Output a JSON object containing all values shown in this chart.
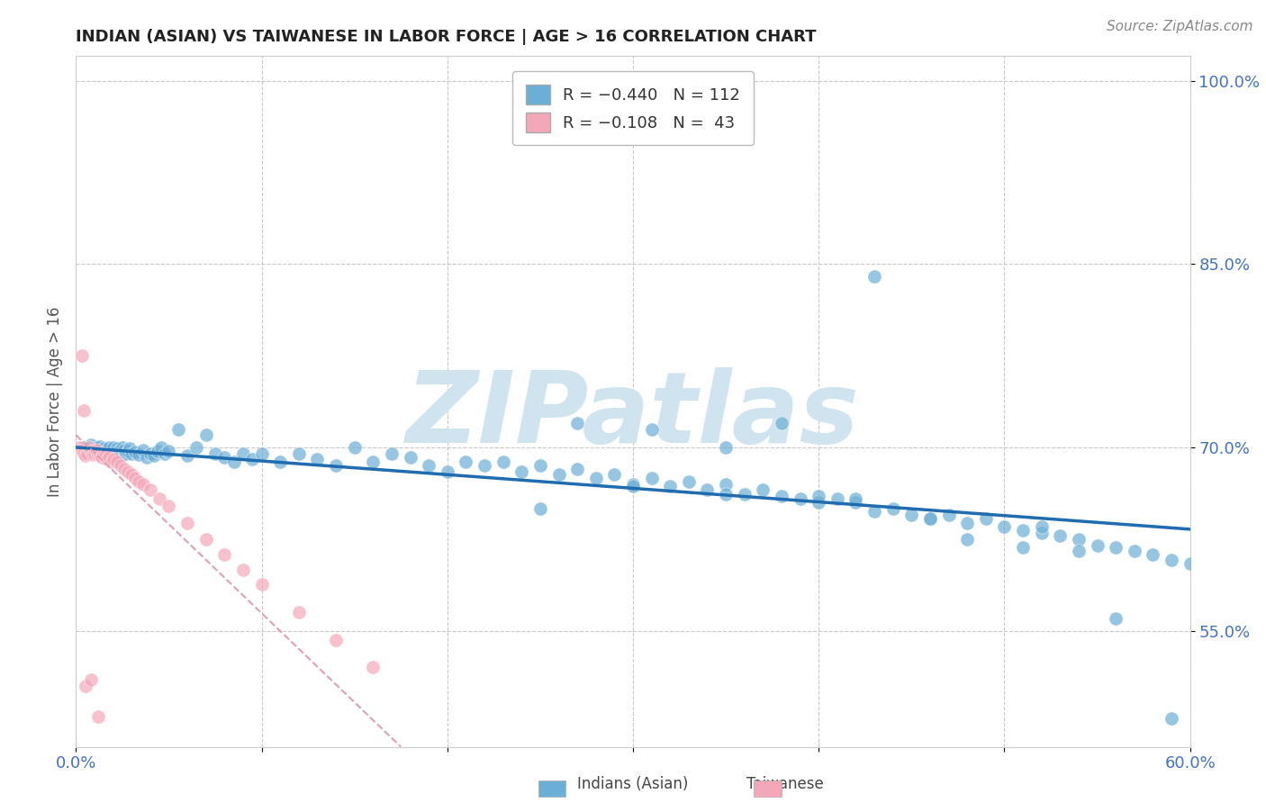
{
  "title": "INDIAN (ASIAN) VS TAIWANESE IN LABOR FORCE | AGE > 16 CORRELATION CHART",
  "source_text": "Source: ZipAtlas.com",
  "ylabel": "In Labor Force | Age > 16",
  "xlim": [
    0.0,
    0.6
  ],
  "ylim": [
    0.455,
    1.02
  ],
  "xtick_positions": [
    0.0,
    0.1,
    0.2,
    0.3,
    0.4,
    0.5,
    0.6
  ],
  "xticklabels": [
    "0.0%",
    "",
    "",
    "",
    "",
    "",
    "60.0%"
  ],
  "ytick_positions": [
    0.55,
    0.7,
    0.85,
    1.0
  ],
  "yticklabels": [
    "55.0%",
    "70.0%",
    "85.0%",
    "100.0%"
  ],
  "blue_color": "#6baed6",
  "pink_color": "#f4a7b9",
  "blue_line_color": "#1f6cb0",
  "pink_line_color": "#e0a0b0",
  "watermark": "ZIPatlas",
  "watermark_color": "#d0e4f0",
  "background_color": "#ffffff",
  "grid_color": "#bbbbbb",
  "title_color": "#222222",
  "axis_label_color": "#555555",
  "tick_label_color": "#4472c4",
  "blue_trend_x": [
    0.0,
    0.6
  ],
  "blue_trend_y": [
    0.7,
    0.633
  ],
  "pink_trend_x": [
    0.0,
    0.175
  ],
  "pink_trend_y": [
    0.71,
    0.455
  ],
  "blue_scatter_x": [
    0.004,
    0.006,
    0.008,
    0.009,
    0.01,
    0.011,
    0.012,
    0.013,
    0.014,
    0.015,
    0.016,
    0.017,
    0.018,
    0.019,
    0.02,
    0.021,
    0.022,
    0.023,
    0.024,
    0.025,
    0.026,
    0.027,
    0.028,
    0.029,
    0.03,
    0.032,
    0.034,
    0.036,
    0.038,
    0.04,
    0.042,
    0.044,
    0.046,
    0.048,
    0.05,
    0.055,
    0.06,
    0.065,
    0.07,
    0.075,
    0.08,
    0.085,
    0.09,
    0.095,
    0.1,
    0.11,
    0.12,
    0.13,
    0.14,
    0.15,
    0.16,
    0.17,
    0.18,
    0.19,
    0.2,
    0.21,
    0.22,
    0.23,
    0.24,
    0.25,
    0.26,
    0.27,
    0.28,
    0.29,
    0.3,
    0.31,
    0.32,
    0.33,
    0.34,
    0.35,
    0.36,
    0.37,
    0.38,
    0.39,
    0.4,
    0.41,
    0.42,
    0.43,
    0.44,
    0.45,
    0.46,
    0.47,
    0.48,
    0.49,
    0.5,
    0.51,
    0.52,
    0.53,
    0.54,
    0.55,
    0.56,
    0.57,
    0.58,
    0.59,
    0.6,
    0.43,
    0.38,
    0.27,
    0.31,
    0.35,
    0.48,
    0.51,
    0.54,
    0.56,
    0.59,
    0.25,
    0.4,
    0.42,
    0.35,
    0.3,
    0.46,
    0.52
  ],
  "blue_scatter_y": [
    0.7,
    0.698,
    0.702,
    0.695,
    0.698,
    0.7,
    0.696,
    0.701,
    0.697,
    0.699,
    0.695,
    0.698,
    0.7,
    0.694,
    0.7,
    0.696,
    0.699,
    0.697,
    0.694,
    0.7,
    0.698,
    0.695,
    0.697,
    0.699,
    0.695,
    0.696,
    0.694,
    0.698,
    0.692,
    0.695,
    0.693,
    0.697,
    0.7,
    0.695,
    0.697,
    0.715,
    0.693,
    0.7,
    0.71,
    0.695,
    0.692,
    0.688,
    0.695,
    0.69,
    0.695,
    0.688,
    0.695,
    0.69,
    0.685,
    0.7,
    0.688,
    0.695,
    0.692,
    0.685,
    0.68,
    0.688,
    0.685,
    0.688,
    0.68,
    0.685,
    0.678,
    0.682,
    0.675,
    0.678,
    0.67,
    0.675,
    0.668,
    0.672,
    0.665,
    0.67,
    0.662,
    0.665,
    0.66,
    0.658,
    0.655,
    0.658,
    0.655,
    0.648,
    0.65,
    0.645,
    0.642,
    0.645,
    0.638,
    0.642,
    0.635,
    0.632,
    0.63,
    0.628,
    0.625,
    0.62,
    0.618,
    0.615,
    0.612,
    0.608,
    0.605,
    0.84,
    0.72,
    0.72,
    0.715,
    0.7,
    0.625,
    0.618,
    0.615,
    0.56,
    0.478,
    0.65,
    0.66,
    0.658,
    0.662,
    0.668,
    0.642,
    0.635
  ],
  "pink_scatter_x": [
    0.002,
    0.003,
    0.004,
    0.005,
    0.006,
    0.007,
    0.008,
    0.009,
    0.01,
    0.011,
    0.012,
    0.013,
    0.014,
    0.015,
    0.016,
    0.017,
    0.018,
    0.019,
    0.02,
    0.022,
    0.024,
    0.026,
    0.028,
    0.03,
    0.032,
    0.034,
    0.036,
    0.04,
    0.045,
    0.05,
    0.06,
    0.07,
    0.08,
    0.09,
    0.1,
    0.12,
    0.14,
    0.16,
    0.003,
    0.004,
    0.005,
    0.008,
    0.012
  ],
  "pink_scatter_y": [
    0.7,
    0.698,
    0.695,
    0.693,
    0.695,
    0.7,
    0.697,
    0.694,
    0.695,
    0.698,
    0.694,
    0.695,
    0.692,
    0.695,
    0.693,
    0.69,
    0.692,
    0.688,
    0.69,
    0.688,
    0.685,
    0.682,
    0.68,
    0.678,
    0.675,
    0.672,
    0.67,
    0.665,
    0.658,
    0.652,
    0.638,
    0.625,
    0.612,
    0.6,
    0.588,
    0.565,
    0.542,
    0.52,
    0.775,
    0.73,
    0.505,
    0.51,
    0.48
  ]
}
